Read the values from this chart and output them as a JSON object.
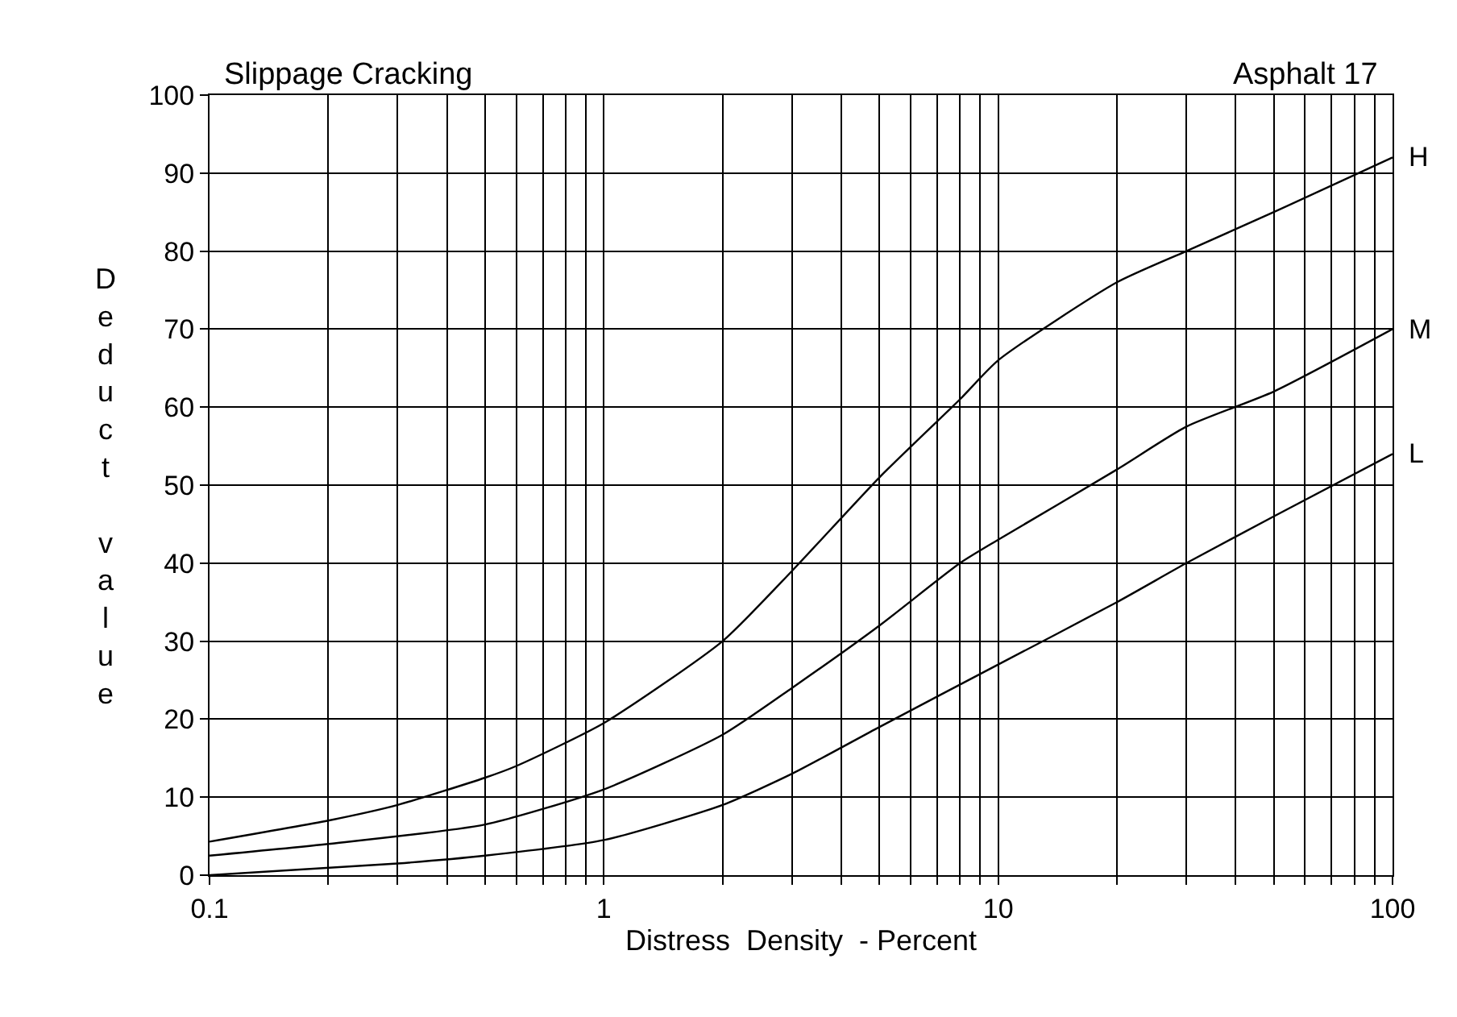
{
  "chart_data": {
    "type": "line",
    "title": "Slippage Cracking",
    "annotations": [
      "Asphalt 17"
    ],
    "xlabel": "Distress  Density  - Percent",
    "ylabel": "Deduct value",
    "log": "x",
    "grid": true,
    "legend": false,
    "marker": "none",
    "line_style": "solid",
    "xlim": [
      0.1,
      100
    ],
    "ylim": [
      0,
      100
    ],
    "xticks": [
      0.1,
      {
        "value": 0.2,
        "label": null
      },
      {
        "value": 0.3,
        "label": null
      },
      {
        "value": 0.4,
        "label": null
      },
      {
        "value": 0.5,
        "label": null
      },
      {
        "value": 0.6,
        "label": null
      },
      {
        "value": 0.7,
        "label": null
      },
      {
        "value": 0.8,
        "label": null
      },
      {
        "value": 0.9,
        "label": null
      },
      1,
      {
        "value": 2,
        "label": null
      },
      {
        "value": 3,
        "label": null
      },
      {
        "value": 4,
        "label": null
      },
      {
        "value": 5,
        "label": null
      },
      {
        "value": 6,
        "label": null
      },
      {
        "value": 7,
        "label": null
      },
      {
        "value": 8,
        "label": null
      },
      {
        "value": 9,
        "label": null
      },
      10,
      {
        "value": 20,
        "label": null
      },
      {
        "value": 30,
        "label": null
      },
      {
        "value": 40,
        "label": null
      },
      {
        "value": 50,
        "label": null
      },
      {
        "value": 60,
        "label": null
      },
      {
        "value": 70,
        "label": null
      },
      {
        "value": 80,
        "label": null
      },
      {
        "value": 90,
        "label": null
      },
      100
    ],
    "yticks": [
      0,
      10,
      20,
      30,
      40,
      50,
      60,
      70,
      80,
      90,
      100
    ],
    "series": [
      {
        "name": "H",
        "color": "#000000",
        "x": [
          0.1,
          0.2,
          0.3,
          0.5,
          0.6,
          1,
          2,
          3,
          5,
          8,
          10,
          20,
          30,
          50,
          100
        ],
        "values": [
          4.3,
          7,
          9,
          12.5,
          14,
          19.5,
          30,
          39,
          51,
          61,
          66,
          76,
          80,
          85,
          92
        ]
      },
      {
        "name": "M",
        "color": "#000000",
        "x": [
          0.1,
          0.2,
          0.5,
          1,
          2,
          3,
          5,
          8,
          10,
          20,
          30,
          50,
          100
        ],
        "values": [
          2.5,
          4,
          6.5,
          11,
          18,
          24,
          32,
          40,
          43,
          52,
          57.5,
          62,
          70
        ]
      },
      {
        "name": "L",
        "color": "#000000",
        "x": [
          0.1,
          0.3,
          0.5,
          1,
          2,
          3,
          5,
          10,
          20,
          30,
          50,
          100
        ],
        "values": [
          0,
          1.5,
          2.5,
          4.5,
          9,
          13,
          19,
          27,
          35,
          40,
          46,
          54
        ]
      }
    ]
  }
}
